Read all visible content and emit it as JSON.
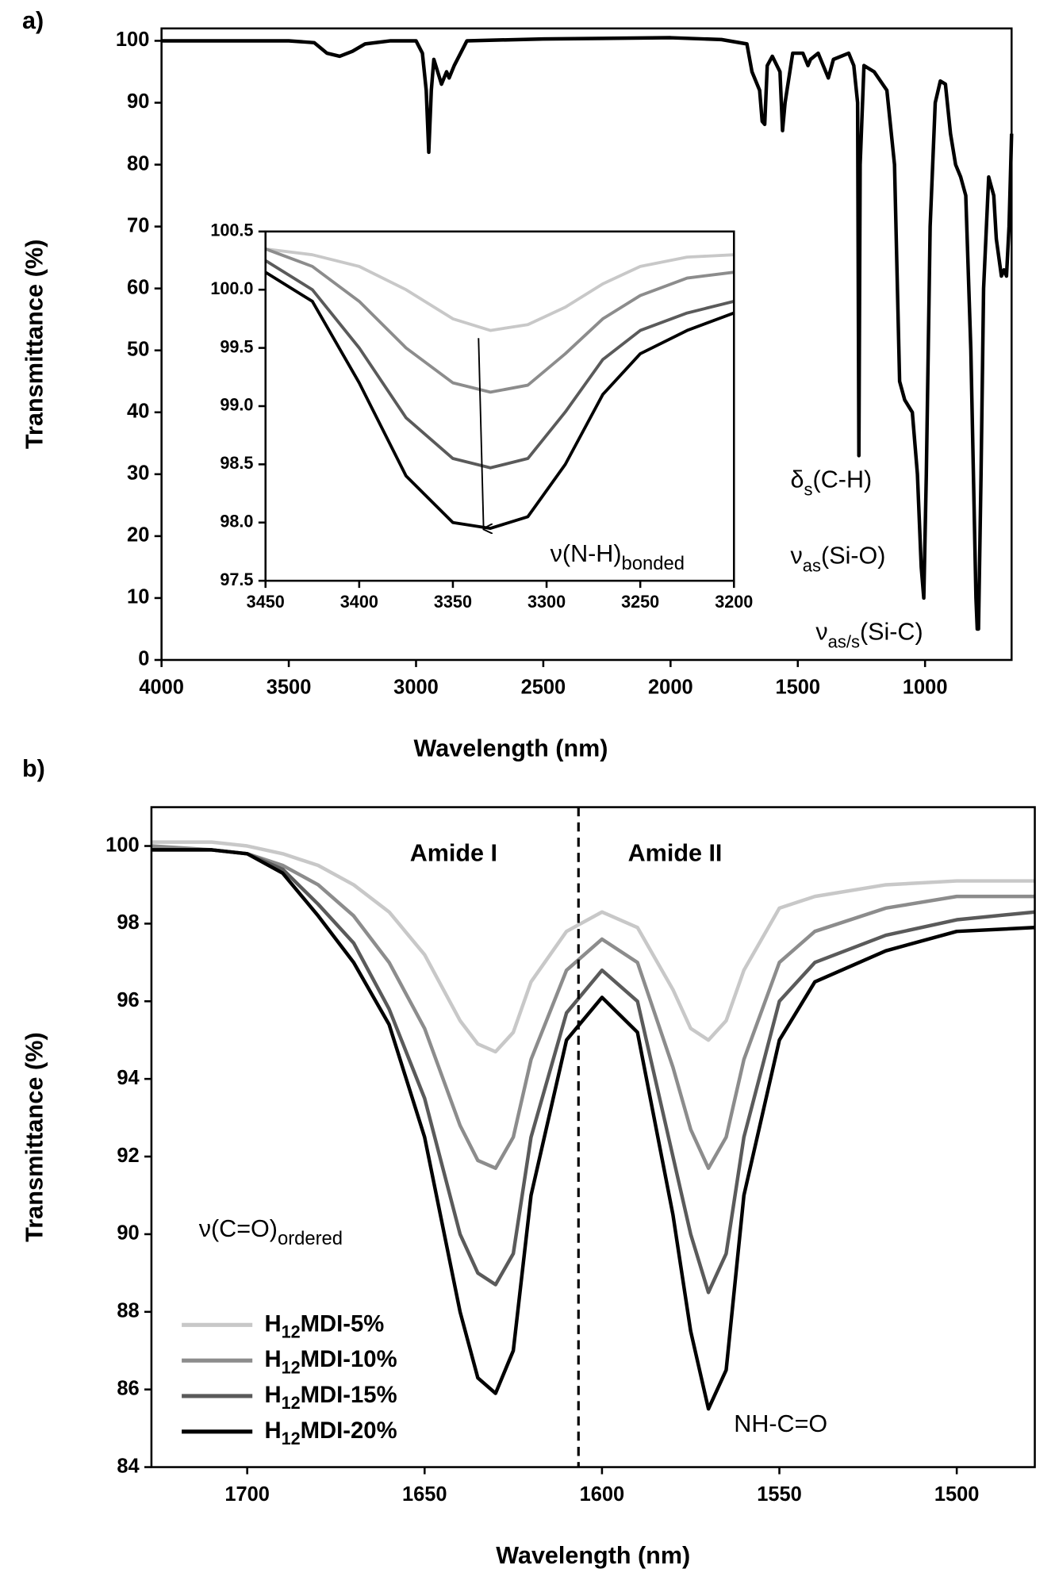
{
  "chart_data": [
    {
      "type": "line",
      "panel": "a)",
      "x_label": "Wavelength (nm)",
      "y_label": "Transmittance (%)",
      "xlim": [
        4000,
        660
      ],
      "ylim": [
        0,
        102
      ],
      "xticks": [
        4000,
        3500,
        3000,
        2500,
        2000,
        1500,
        1000
      ],
      "yticks": [
        0,
        10,
        20,
        30,
        40,
        50,
        60,
        70,
        80,
        90,
        100
      ],
      "x": [
        4000,
        3500,
        3400,
        3350,
        3300,
        3250,
        3200,
        3100,
        3000,
        2975,
        2960,
        2950,
        2940,
        2930,
        2900,
        2880,
        2870,
        2850,
        2800,
        2500,
        2000,
        1800,
        1700,
        1680,
        1650,
        1640,
        1630,
        1620,
        1600,
        1570,
        1560,
        1550,
        1520,
        1480,
        1460,
        1450,
        1420,
        1400,
        1380,
        1360,
        1300,
        1280,
        1265,
        1260,
        1255,
        1240,
        1200,
        1150,
        1120,
        1100,
        1080,
        1050,
        1030,
        1015,
        1005,
        995,
        980,
        960,
        940,
        920,
        900,
        880,
        860,
        840,
        820,
        800,
        795,
        790,
        780,
        770,
        750,
        730,
        720,
        700,
        690,
        680,
        670,
        660
      ],
      "series": [
        {
          "color": "#000000",
          "values": [
            100,
            100,
            99.7,
            98,
            97.5,
            98.3,
            99.5,
            100,
            100,
            98,
            92,
            82,
            92,
            97,
            93,
            95,
            94,
            96,
            100,
            100.3,
            100.5,
            100.2,
            99.5,
            95,
            92,
            87,
            86.5,
            96,
            97.5,
            95,
            85.5,
            90,
            98,
            98,
            96,
            97,
            98,
            96,
            94,
            97,
            98,
            96,
            90,
            33,
            80,
            96,
            95,
            92,
            80,
            45,
            42,
            40,
            30,
            15,
            10,
            30,
            70,
            90,
            93.5,
            93,
            85,
            80,
            78,
            75,
            50,
            10,
            5,
            5,
            30,
            60,
            78,
            75,
            68,
            62,
            63,
            62,
            70,
            85
          ]
        }
      ],
      "annotations": [
        {
          "text": "δ",
          "sub": "s",
          "tail": "(C-H)"
        },
        {
          "text": "ν",
          "sub": "as",
          "tail": "(Si-O)"
        },
        {
          "text": "ν",
          "sub": "as/s",
          "tail": "(Si-C)"
        }
      ]
    },
    {
      "type": "line",
      "xlim": [
        3450,
        3200
      ],
      "ylim": [
        97.5,
        100.5
      ],
      "xticks": [
        3450,
        3400,
        3350,
        3300,
        3250,
        3200
      ],
      "yticks": [
        97.5,
        {
          "value": 98,
          "label": "98.0"
        },
        98.5,
        {
          "value": 99,
          "label": "99.0"
        },
        99.5,
        {
          "value": 100,
          "label": "100.0"
        },
        100.5
      ],
      "x": [
        3450,
        3425,
        3400,
        3375,
        3350,
        3330,
        3310,
        3290,
        3270,
        3250,
        3225,
        3200
      ],
      "series": [
        {
          "color": "#c8c8c8",
          "values": [
            100.35,
            100.3,
            100.2,
            100.0,
            99.75,
            99.65,
            99.7,
            99.85,
            100.05,
            100.2,
            100.28,
            100.3
          ]
        },
        {
          "color": "#8c8c8c",
          "values": [
            100.35,
            100.2,
            99.9,
            99.5,
            99.2,
            99.12,
            99.18,
            99.45,
            99.75,
            99.95,
            100.1,
            100.15
          ]
        },
        {
          "color": "#5a5a5a",
          "values": [
            100.25,
            100.0,
            99.5,
            98.9,
            98.55,
            98.47,
            98.55,
            98.95,
            99.4,
            99.65,
            99.8,
            99.9
          ]
        },
        {
          "color": "#000000",
          "values": [
            100.15,
            99.9,
            99.2,
            98.4,
            98.0,
            97.95,
            98.05,
            98.5,
            99.1,
            99.45,
            99.65,
            99.8
          ]
        }
      ],
      "annotations": [
        {
          "text": "ν(N-H)",
          "sub": "bonded"
        }
      ]
    },
    {
      "type": "line",
      "panel": "b)",
      "x_label": "Wavelength (nm)",
      "y_label": "Transmittance (%)",
      "xlim": [
        1727,
        1478
      ],
      "ylim": [
        84,
        101
      ],
      "xticks": [
        1700,
        1650,
        1600,
        1550,
        1500
      ],
      "yticks": [
        84,
        86,
        88,
        90,
        92,
        94,
        96,
        98,
        100
      ],
      "x": [
        1727,
        1710,
        1700,
        1690,
        1680,
        1670,
        1660,
        1650,
        1640,
        1635,
        1630,
        1625,
        1620,
        1610,
        1600,
        1590,
        1580,
        1575,
        1570,
        1565,
        1560,
        1550,
        1540,
        1520,
        1500,
        1478
      ],
      "series": [
        {
          "name": "H12MDI-5%",
          "color": "#c8c8c8",
          "values": [
            100.1,
            100.1,
            100,
            99.8,
            99.5,
            99,
            98.3,
            97.2,
            95.5,
            94.9,
            94.7,
            95.2,
            96.5,
            97.8,
            98.3,
            97.9,
            96.3,
            95.3,
            95.0,
            95.5,
            96.8,
            98.4,
            98.7,
            99.0,
            99.1,
            99.1
          ]
        },
        {
          "name": "H12MDI-10%",
          "color": "#8c8c8c",
          "values": [
            100,
            99.9,
            99.8,
            99.5,
            99,
            98.2,
            97,
            95.3,
            92.8,
            91.9,
            91.7,
            92.5,
            94.5,
            96.8,
            97.6,
            97,
            94.3,
            92.7,
            91.7,
            92.5,
            94.5,
            97,
            97.8,
            98.4,
            98.7,
            98.7
          ]
        },
        {
          "name": "H12MDI-15%",
          "color": "#5a5a5a",
          "values": [
            99.9,
            99.9,
            99.8,
            99.4,
            98.5,
            97.5,
            95.8,
            93.5,
            90,
            89,
            88.7,
            89.5,
            92.5,
            95.7,
            96.8,
            96,
            92,
            90,
            88.5,
            89.5,
            92.5,
            96,
            97,
            97.7,
            98.1,
            98.3
          ]
        },
        {
          "name": "H12MDI-20%",
          "color": "#000000",
          "values": [
            99.9,
            99.9,
            99.8,
            99.3,
            98.2,
            97,
            95.4,
            92.5,
            88,
            86.3,
            85.9,
            87,
            91,
            95,
            96.1,
            95.2,
            90.5,
            87.5,
            85.5,
            86.5,
            91,
            95,
            96.5,
            97.3,
            97.8,
            97.9
          ]
        }
      ],
      "annotations": [
        {
          "text": "Amide I"
        },
        {
          "text": "Amide II"
        },
        {
          "text": "ν(C=O)",
          "sub": "ordered"
        },
        {
          "text": "NH-C=O"
        }
      ]
    }
  ]
}
